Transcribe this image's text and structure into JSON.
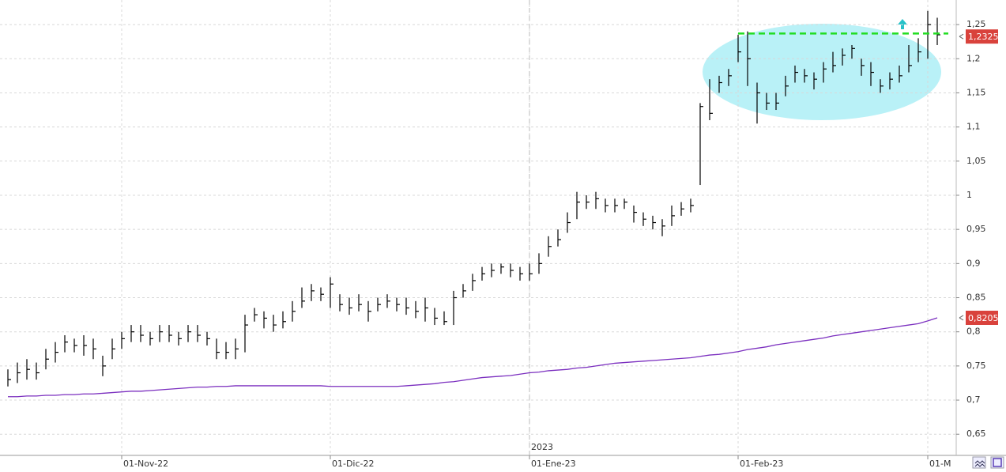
{
  "chart_data": {
    "type": "hlc",
    "categories": [
      null,
      null,
      null,
      null,
      null,
      null,
      null,
      null,
      null,
      null,
      null,
      null,
      "01-Nov-22",
      null,
      null,
      null,
      null,
      null,
      null,
      null,
      null,
      null,
      null,
      null,
      null,
      null,
      null,
      null,
      null,
      null,
      null,
      null,
      null,
      null,
      "01-Dic-22",
      null,
      null,
      null,
      null,
      null,
      null,
      null,
      null,
      null,
      null,
      null,
      null,
      null,
      null,
      null,
      null,
      null,
      null,
      null,
      null,
      "01-Ene-23",
      null,
      null,
      null,
      null,
      null,
      null,
      null,
      null,
      null,
      null,
      null,
      null,
      null,
      null,
      null,
      null,
      null,
      null,
      null,
      null,
      null,
      "01-Feb-23",
      null,
      null,
      null,
      null,
      null,
      null,
      null,
      null,
      null,
      null,
      null,
      null,
      null,
      null,
      null,
      null,
      null,
      null,
      null,
      "01-M",
      null
    ],
    "high": [
      0.745,
      0.755,
      0.76,
      0.755,
      0.775,
      0.785,
      0.795,
      0.79,
      0.795,
      0.79,
      0.765,
      0.79,
      0.8,
      0.81,
      0.81,
      0.8,
      0.81,
      0.81,
      0.8,
      0.81,
      0.81,
      0.8,
      0.79,
      0.785,
      0.79,
      0.825,
      0.835,
      0.83,
      0.825,
      0.83,
      0.845,
      0.865,
      0.87,
      0.865,
      0.88,
      0.855,
      0.85,
      0.855,
      0.845,
      0.85,
      0.855,
      0.85,
      0.85,
      0.845,
      0.85,
      0.835,
      0.83,
      0.86,
      0.87,
      0.885,
      0.895,
      0.9,
      0.9,
      0.9,
      0.895,
      0.9,
      0.915,
      0.94,
      0.95,
      0.975,
      1.005,
      1.0,
      1.005,
      0.995,
      0.995,
      0.995,
      0.985,
      0.975,
      0.97,
      0.965,
      0.985,
      0.99,
      0.995,
      1.135,
      1.17,
      1.175,
      1.185,
      1.235,
      1.24,
      1.165,
      1.15,
      1.15,
      1.175,
      1.19,
      1.185,
      1.18,
      1.195,
      1.21,
      1.215,
      1.22,
      1.2,
      1.195,
      1.17,
      1.18,
      1.19,
      1.22,
      1.23,
      1.27,
      1.26
    ],
    "low": [
      0.72,
      0.725,
      0.73,
      0.73,
      0.745,
      0.755,
      0.77,
      0.77,
      0.765,
      0.76,
      0.735,
      0.76,
      0.775,
      0.785,
      0.785,
      0.78,
      0.785,
      0.785,
      0.78,
      0.785,
      0.785,
      0.78,
      0.76,
      0.76,
      0.76,
      0.77,
      0.815,
      0.805,
      0.8,
      0.805,
      0.815,
      0.835,
      0.845,
      0.845,
      0.835,
      0.83,
      0.825,
      0.83,
      0.815,
      0.83,
      0.835,
      0.83,
      0.825,
      0.82,
      0.815,
      0.81,
      0.81,
      0.81,
      0.85,
      0.86,
      0.875,
      0.88,
      0.885,
      0.88,
      0.875,
      0.875,
      0.885,
      0.91,
      0.925,
      0.945,
      0.965,
      0.98,
      0.98,
      0.975,
      0.975,
      0.98,
      0.96,
      0.955,
      0.95,
      0.94,
      0.955,
      0.97,
      0.975,
      1.015,
      1.11,
      1.15,
      1.16,
      1.195,
      1.16,
      1.105,
      1.125,
      1.125,
      1.145,
      1.165,
      1.165,
      1.155,
      1.165,
      1.18,
      1.19,
      1.2,
      1.175,
      1.16,
      1.15,
      1.155,
      1.165,
      1.18,
      1.195,
      1.2,
      1.22
    ],
    "close": [
      0.73,
      0.74,
      0.745,
      0.74,
      0.76,
      0.77,
      0.785,
      0.78,
      0.78,
      0.775,
      0.75,
      0.775,
      0.79,
      0.8,
      0.795,
      0.79,
      0.8,
      0.795,
      0.79,
      0.8,
      0.795,
      0.79,
      0.77,
      0.77,
      0.775,
      0.81,
      0.825,
      0.82,
      0.81,
      0.815,
      0.83,
      0.845,
      0.86,
      0.855,
      0.87,
      0.84,
      0.835,
      0.84,
      0.83,
      0.84,
      0.845,
      0.84,
      0.835,
      0.83,
      0.835,
      0.82,
      0.815,
      0.85,
      0.86,
      0.875,
      0.885,
      0.89,
      0.895,
      0.89,
      0.885,
      0.885,
      0.9,
      0.925,
      0.935,
      0.96,
      0.99,
      0.99,
      0.995,
      0.985,
      0.985,
      0.99,
      0.975,
      0.965,
      0.96,
      0.955,
      0.97,
      0.98,
      0.985,
      1.13,
      1.12,
      1.165,
      1.175,
      1.21,
      1.2,
      1.15,
      1.135,
      1.135,
      1.16,
      1.18,
      1.175,
      1.17,
      1.185,
      1.19,
      1.205,
      1.215,
      1.19,
      1.18,
      1.16,
      1.17,
      1.175,
      1.19,
      1.21,
      1.25,
      1.235
    ],
    "color": "#000000",
    "moving_average": {
      "color": "#7b2fbf",
      "values": [
        0.705,
        0.705,
        0.706,
        0.706,
        0.707,
        0.707,
        0.708,
        0.708,
        0.709,
        0.709,
        0.71,
        0.711,
        0.712,
        0.713,
        0.713,
        0.714,
        0.715,
        0.716,
        0.717,
        0.718,
        0.719,
        0.719,
        0.72,
        0.72,
        0.721,
        0.721,
        0.721,
        0.721,
        0.721,
        0.721,
        0.721,
        0.721,
        0.721,
        0.721,
        0.72,
        0.72,
        0.72,
        0.72,
        0.72,
        0.72,
        0.72,
        0.72,
        0.721,
        0.722,
        0.723,
        0.724,
        0.726,
        0.727,
        0.729,
        0.731,
        0.733,
        0.734,
        0.735,
        0.736,
        0.738,
        0.74,
        0.741,
        0.743,
        0.744,
        0.745,
        0.747,
        0.748,
        0.75,
        0.752,
        0.754,
        0.755,
        0.756,
        0.757,
        0.758,
        0.759,
        0.76,
        0.761,
        0.762,
        0.764,
        0.766,
        0.767,
        0.769,
        0.771,
        0.774,
        0.776,
        0.778,
        0.781,
        0.783,
        0.785,
        0.787,
        0.789,
        0.791,
        0.794,
        0.796,
        0.798,
        0.8,
        0.802,
        0.804,
        0.806,
        0.808,
        0.81,
        0.812,
        0.816,
        0.8205
      ]
    },
    "ylim": [
      0.619,
      1.286
    ],
    "yticks": [
      {
        "value": 0.65,
        "label": "0,65"
      },
      {
        "value": 0.7,
        "label": "0,7"
      },
      {
        "value": 0.75,
        "label": "0,75"
      },
      {
        "value": 0.8,
        "label": "0,8"
      },
      {
        "value": 0.85,
        "label": "0,85"
      },
      {
        "value": 0.9,
        "label": "0,9"
      },
      {
        "value": 0.95,
        "label": "0,95"
      },
      {
        "value": 1,
        "label": "1"
      },
      {
        "value": 1.05,
        "label": "1,05"
      },
      {
        "value": 1.1,
        "label": "1,1"
      },
      {
        "value": 1.15,
        "label": "1,15"
      },
      {
        "value": 1.2,
        "label": "1,2"
      },
      {
        "value": 1.25,
        "label": "1,25"
      }
    ],
    "grid": true,
    "last_labels": [
      {
        "value": 1.2325,
        "label": "1,2325"
      },
      {
        "value": 0.8205,
        "label": "0,8205"
      }
    ],
    "last_label_color": "#d9423c",
    "hline": {
      "value": 1.237,
      "color": "#22dd22"
    },
    "year_marker": "2023"
  }
}
